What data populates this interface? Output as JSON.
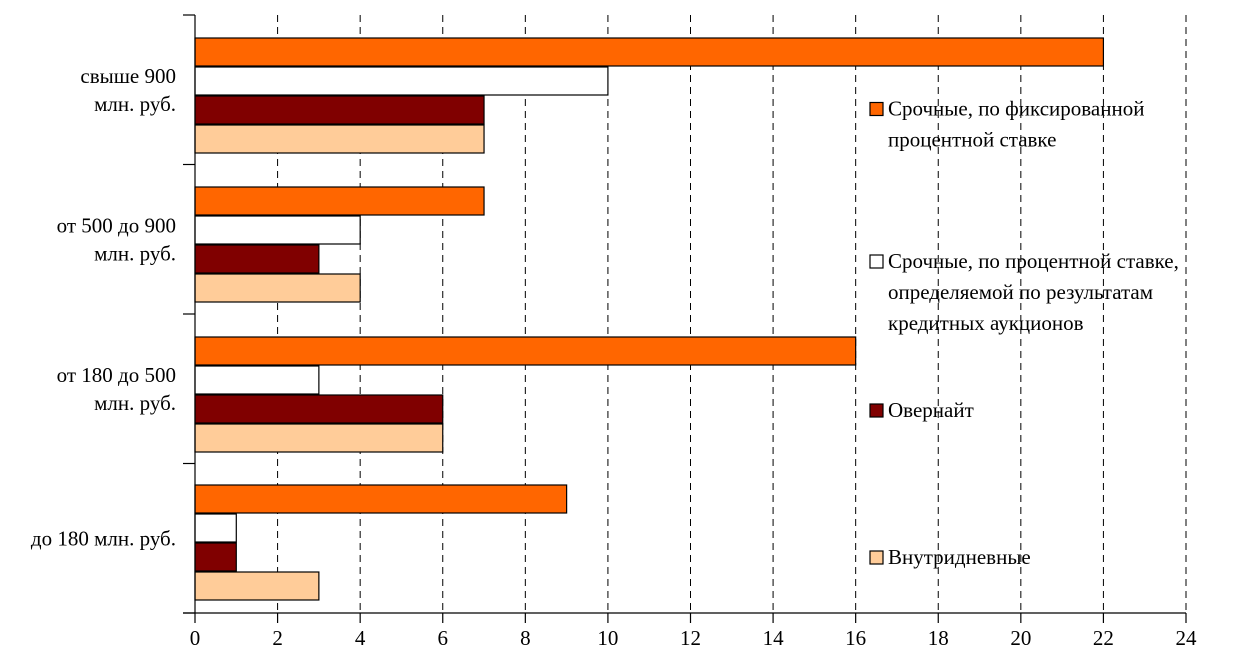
{
  "chart_data": {
    "type": "bar",
    "orientation": "horizontal",
    "categories": [
      [
        "свыше 900",
        "млн. руб."
      ],
      [
        "от 500 до 900",
        "млн. руб."
      ],
      [
        "от 180 до 500",
        "млн. руб."
      ],
      [
        "до 180 млн. руб."
      ]
    ],
    "series": [
      {
        "name": [
          "Срочные, по фиксированной",
          "процентной ставке"
        ],
        "color": "#FF6600",
        "values": [
          22,
          7,
          16,
          9
        ]
      },
      {
        "name": [
          "Срочные, по процентной ставке,",
          "определяемой по результатам",
          "кредитных аукционов"
        ],
        "color": "#FFFFFF",
        "values": [
          10,
          4,
          3,
          1
        ]
      },
      {
        "name": [
          "Овернайт"
        ],
        "color": "#800000",
        "values": [
          7,
          3,
          6,
          1
        ]
      },
      {
        "name": [
          "Внутридневные"
        ],
        "color": "#FFCC99",
        "values": [
          7,
          4,
          6,
          3
        ]
      }
    ],
    "xlim": [
      0,
      24
    ],
    "xticks": [
      0,
      2,
      4,
      6,
      8,
      10,
      12,
      14,
      16,
      18,
      20,
      22,
      24
    ],
    "grid": "vertical dashed",
    "legend": "right"
  }
}
